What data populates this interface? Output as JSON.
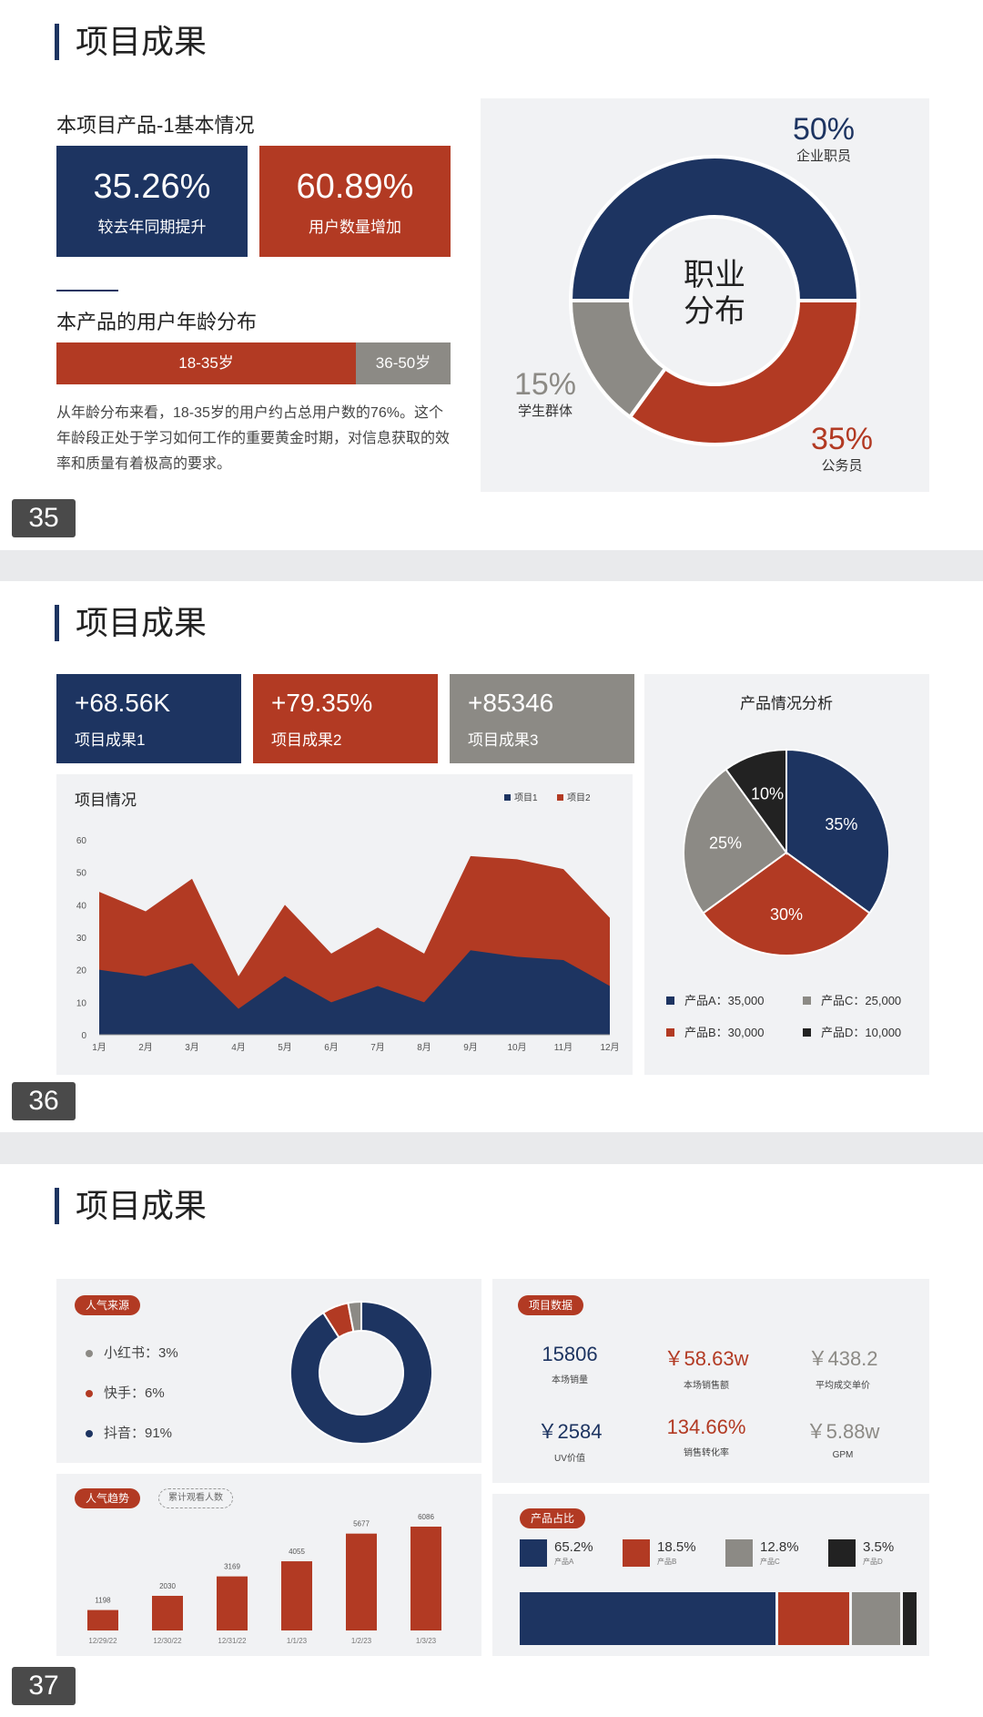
{
  "slide1": {
    "title": "项目成果",
    "subtitle": "本项目产品-1基本情况",
    "stats": [
      {
        "value": "35.26%",
        "label": "较去年同期提升",
        "color": "#1d3461"
      },
      {
        "value": "60.89%",
        "label": "用户数量增加",
        "color": "#b23a23"
      }
    ],
    "age_title": "本产品的用户年龄分布",
    "age_bar": [
      {
        "label": "18-35岁",
        "share": 0.76,
        "color": "#b23a23"
      },
      {
        "label": "36-50岁",
        "share": 0.24,
        "color": "#8c8a85"
      }
    ],
    "paragraph": "从年龄分布来看，18-35岁的用户约占总用户数的76%。这个年龄段正处于学习如何工作的重要黄金时期，对信息获取的效率和质量有着极高的要求。",
    "page_number": "35",
    "donut": {
      "center_line1": "职业",
      "center_line2": "分布",
      "segments": [
        {
          "pct_label": "50%",
          "name": "企业职员",
          "value": 50,
          "color": "#1d3461"
        },
        {
          "pct_label": "35%",
          "name": "公务员",
          "value": 35,
          "color": "#b23a23"
        },
        {
          "pct_label": "15%",
          "name": "学生群体",
          "value": 15,
          "color": "#8c8a85"
        }
      ]
    }
  },
  "slide2": {
    "title": "项目成果",
    "page_number": "36",
    "kpis": [
      {
        "value": "+68.56K",
        "label": "项目成果1",
        "color": "#1d3461"
      },
      {
        "value": "+79.35%",
        "label": "项目成果2",
        "color": "#b23a23"
      },
      {
        "value": "+85346",
        "label": "项目成果3",
        "color": "#8c8a85"
      }
    ],
    "area_chart": {
      "type": "area",
      "title": "项目情况",
      "categories": [
        "1月",
        "2月",
        "3月",
        "4月",
        "5月",
        "6月",
        "7月",
        "8月",
        "9月",
        "10月",
        "11月",
        "12月"
      ],
      "y_ticks": [
        "0",
        "10",
        "20",
        "30",
        "40",
        "50",
        "60"
      ],
      "ylim": [
        0,
        60
      ],
      "series": [
        {
          "name": "项目1",
          "color": "#1d3461",
          "values": [
            20,
            18,
            22,
            8,
            18,
            10,
            15,
            10,
            26,
            24,
            23,
            15
          ]
        },
        {
          "name": "项目2",
          "color": "#b23a23",
          "values": [
            44,
            38,
            48,
            18,
            40,
            25,
            33,
            25,
            55,
            54,
            51,
            36
          ]
        }
      ]
    },
    "pie_chart": {
      "type": "pie",
      "title": "产品情况分析",
      "slices": [
        {
          "name": "产品A",
          "value": 35,
          "label": "35%",
          "legend": "产品A：35,000",
          "color": "#1d3461"
        },
        {
          "name": "产品B",
          "value": 30,
          "label": "30%",
          "legend": "产品B：30,000",
          "color": "#b23a23"
        },
        {
          "name": "产品C",
          "value": 25,
          "label": "25%",
          "legend": "产品C：25,000",
          "color": "#8c8a85"
        },
        {
          "name": "产品D",
          "value": 10,
          "label": "10%",
          "legend": "产品D：10,000",
          "color": "#222222"
        }
      ]
    }
  },
  "slide3": {
    "title": "项目成果",
    "page_number": "37",
    "source": {
      "tag": "人气来源",
      "items": [
        {
          "label": "小红书：3%",
          "value": 3,
          "color": "#8c8a85"
        },
        {
          "label": "快手：6%",
          "value": 6,
          "color": "#b23a23"
        },
        {
          "label": "抖音：91%",
          "value": 91,
          "color": "#1d3461"
        }
      ]
    },
    "project_data": {
      "tag": "项目数据",
      "items": [
        {
          "value": "15806",
          "label": "本场销量",
          "color": "#1d3461"
        },
        {
          "value": "￥58.63w",
          "label": "本场销售额",
          "color": "#b23a23"
        },
        {
          "value": "￥438.2",
          "label": "平均成交单价",
          "color": "#8c8a85"
        },
        {
          "value": "￥2584",
          "label": "UV价值",
          "color": "#1d3461"
        },
        {
          "value": "134.66%",
          "label": "销售转化率",
          "color": "#b23a23"
        },
        {
          "value": "￥5.88w",
          "label": "GPM",
          "color": "#8c8a85"
        }
      ]
    },
    "trend": {
      "type": "bar",
      "tag": "人气趋势",
      "tag2": "累计观看人数",
      "categories": [
        "12/29/22",
        "12/30/22",
        "12/31/22",
        "1/1/23",
        "1/2/23",
        "1/3/23"
      ],
      "values": [
        1198,
        2030,
        3169,
        4055,
        5677,
        6086
      ],
      "value_labels": [
        "1198",
        "2030",
        "3169",
        "4055",
        "5677",
        "6086"
      ],
      "color": "#b23a23"
    },
    "share": {
      "tag": "产品占比",
      "items": [
        {
          "pct": "65.2%",
          "name": "产品A",
          "value": 65.2,
          "color": "#1d3461"
        },
        {
          "pct": "18.5%",
          "name": "产品B",
          "value": 18.5,
          "color": "#b23a23"
        },
        {
          "pct": "12.8%",
          "name": "产品C",
          "value": 12.8,
          "color": "#8c8a85"
        },
        {
          "pct": "3.5%",
          "name": "产品D",
          "value": 3.5,
          "color": "#222222"
        }
      ]
    }
  }
}
